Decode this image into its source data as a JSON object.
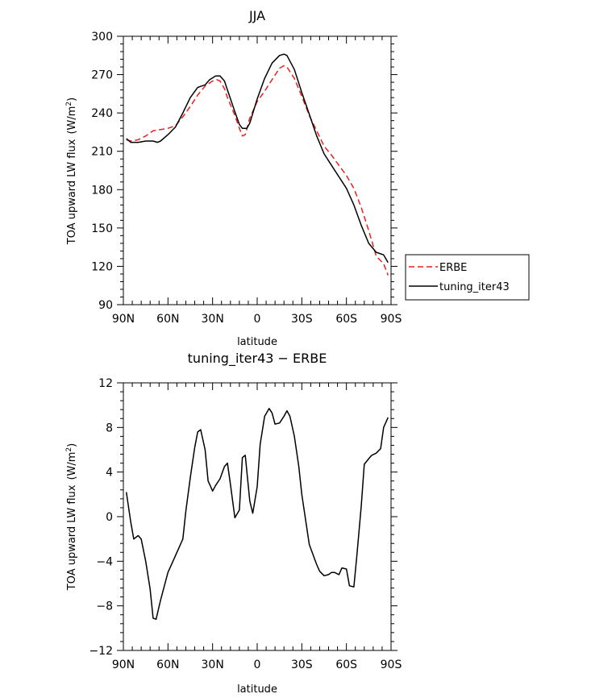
{
  "chart_data": [
    {
      "type": "line",
      "title": "JJA",
      "xlabel": "latitude",
      "ylabel": "TOA upward LW flux",
      "ylabel_unit": "(W/m",
      "ylabel_unit_exp": "2",
      "ylabel_unit_close": ")",
      "xlim": [
        90,
        -90
      ],
      "ylim": [
        90,
        300
      ],
      "xticks": [
        90,
        60,
        30,
        0,
        -30,
        -60,
        -90
      ],
      "xtick_labels": [
        "90N",
        "60N",
        "30N",
        "0",
        "30S",
        "60S",
        "90S"
      ],
      "yticks": [
        90,
        120,
        150,
        180,
        210,
        240,
        270,
        300
      ],
      "ytick_labels": [
        "90",
        "120",
        "150",
        "180",
        "210",
        "240",
        "270",
        "300"
      ],
      "legend_position": "right",
      "series": [
        {
          "name": "ERBE",
          "color": "#e8201c",
          "dash": true,
          "x": [
            88,
            85,
            80,
            75,
            70,
            65,
            60,
            55,
            50,
            45,
            40,
            35,
            30,
            27,
            25,
            22,
            20,
            15,
            12,
            10,
            8,
            5,
            0,
            -5,
            -10,
            -15,
            -18,
            -20,
            -25,
            -30,
            -35,
            -40,
            -45,
            -50,
            -55,
            -60,
            -65,
            -70,
            -75,
            -80,
            -85,
            -88
          ],
          "y": [
            219,
            218,
            219,
            222,
            226,
            227,
            228,
            230,
            237,
            245,
            254,
            261,
            265,
            266,
            265,
            259,
            252,
            238,
            228,
            222,
            223,
            236,
            249,
            257,
            266,
            275,
            277,
            276,
            267,
            253,
            238,
            226,
            214,
            207,
            199,
            191,
            181,
            166,
            148,
            128,
            122,
            113
          ]
        },
        {
          "name": "tuning_iter43",
          "color": "#000000",
          "dash": false,
          "x": [
            88,
            85,
            80,
            75,
            70,
            67,
            65,
            60,
            55,
            50,
            45,
            40,
            35,
            32,
            28,
            25,
            22,
            20,
            15,
            12,
            10,
            7,
            5,
            0,
            -5,
            -10,
            -15,
            -18,
            -20,
            -25,
            -30,
            -35,
            -40,
            -45,
            -50,
            -55,
            -60,
            -65,
            -70,
            -75,
            -80,
            -85,
            -88
          ],
          "y": [
            220,
            217,
            217,
            218,
            218,
            217,
            218,
            223,
            229,
            240,
            252,
            260,
            262,
            266,
            269,
            269,
            265,
            258,
            241,
            231,
            228,
            228,
            232,
            251,
            267,
            279,
            285,
            286,
            285,
            274,
            256,
            239,
            222,
            208,
            199,
            190,
            181,
            168,
            152,
            138,
            131,
            129,
            123
          ]
        }
      ]
    },
    {
      "type": "line",
      "title": "tuning_iter43 − ERBE",
      "xlabel": "latitude",
      "ylabel": "TOA upward LW flux",
      "ylabel_unit": "(W/m",
      "ylabel_unit_exp": "2",
      "ylabel_unit_close": ")",
      "xlim": [
        90,
        -90
      ],
      "ylim": [
        -12,
        12
      ],
      "xticks": [
        90,
        60,
        30,
        0,
        -30,
        -60,
        -90
      ],
      "xtick_labels": [
        "90N",
        "60N",
        "30N",
        "0",
        "30S",
        "60S",
        "90S"
      ],
      "yticks": [
        -12,
        -8,
        -4,
        0,
        4,
        8,
        12
      ],
      "ytick_labels": [
        "−12",
        "−8",
        "−4",
        "0",
        "4",
        "8",
        "12"
      ],
      "series": [
        {
          "name": "",
          "color": "#000000",
          "dash": false,
          "x": [
            88,
            85,
            83,
            80,
            78,
            75,
            72,
            70,
            68,
            65,
            60,
            55,
            50,
            48,
            45,
            42,
            40,
            38,
            35,
            33,
            30,
            28,
            25,
            22,
            20,
            18,
            15,
            12,
            10,
            8,
            5,
            3,
            0,
            -2,
            -5,
            -8,
            -10,
            -12,
            -15,
            -18,
            -20,
            -22,
            -25,
            -28,
            -30,
            -35,
            -40,
            -42,
            -45,
            -48,
            -50,
            -52,
            -55,
            -57,
            -60,
            -62,
            -65,
            -67,
            -70,
            -72,
            -75,
            -77,
            -80,
            -83,
            -85,
            -88
          ],
          "y": [
            2.2,
            -0.5,
            -2.0,
            -1.7,
            -2.0,
            -4.0,
            -6.5,
            -9.1,
            -9.2,
            -7.5,
            -5.0,
            -3.5,
            -2.0,
            0.5,
            3.5,
            6.2,
            7.6,
            7.8,
            6.0,
            3.2,
            2.3,
            2.8,
            3.4,
            4.5,
            4.8,
            2.9,
            -0.1,
            0.6,
            5.3,
            5.5,
            1.4,
            0.3,
            2.7,
            6.5,
            9.0,
            9.7,
            9.3,
            8.3,
            8.4,
            9.0,
            9.5,
            9.0,
            7.2,
            4.5,
            2.0,
            -2.5,
            -4.3,
            -4.9,
            -5.3,
            -5.2,
            -5.0,
            -5.0,
            -5.2,
            -4.6,
            -4.7,
            -6.2,
            -6.3,
            -3.5,
            1.0,
            4.7,
            5.2,
            5.5,
            5.7,
            6.1,
            8.0,
            8.9
          ]
        }
      ]
    }
  ]
}
